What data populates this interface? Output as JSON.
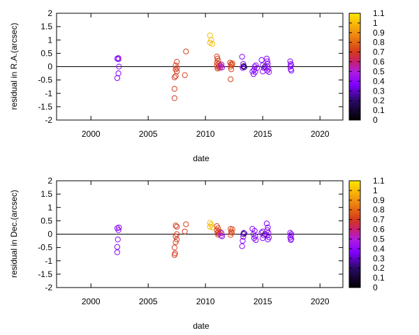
{
  "chart_data": [
    {
      "type": "scatter",
      "xlabel": "date",
      "ylabel": "residual in R.A.(arcsec)",
      "xlim": [
        1997,
        2022
      ],
      "ylim": [
        -2,
        2
      ],
      "xticks": [
        2000,
        2005,
        2010,
        2015,
        2020
      ],
      "yticks": [
        -2,
        -1.5,
        -1,
        -0.5,
        0,
        0.5,
        1,
        1.5,
        2
      ],
      "zero_line": true,
      "colorbar": {
        "min": 0,
        "max": 1.1,
        "ticks": [
          0,
          0.1,
          0.2,
          0.3,
          0.4,
          0.5,
          0.6,
          0.7,
          0.8,
          0.9,
          1,
          1.1
        ]
      },
      "points": [
        {
          "x": 2002.3,
          "y": 0.3,
          "c": 0.38
        },
        {
          "x": 2002.4,
          "y": 0.32,
          "c": 0.38
        },
        {
          "x": 2002.4,
          "y": 0.28,
          "c": 0.38
        },
        {
          "x": 2002.45,
          "y": 0.0,
          "c": 0.38
        },
        {
          "x": 2002.4,
          "y": -0.25,
          "c": 0.38
        },
        {
          "x": 2002.3,
          "y": -0.43,
          "c": 0.38
        },
        {
          "x": 2007.3,
          "y": -1.18,
          "c": 0.7
        },
        {
          "x": 2007.3,
          "y": -0.83,
          "c": 0.7
        },
        {
          "x": 2007.3,
          "y": -0.4,
          "c": 0.7
        },
        {
          "x": 2007.4,
          "y": -0.35,
          "c": 0.7
        },
        {
          "x": 2007.5,
          "y": -0.18,
          "c": 0.7
        },
        {
          "x": 2007.4,
          "y": -0.1,
          "c": 0.7
        },
        {
          "x": 2007.5,
          "y": -0.05,
          "c": 0.7
        },
        {
          "x": 2007.4,
          "y": 0.05,
          "c": 0.7
        },
        {
          "x": 2007.5,
          "y": 0.18,
          "c": 0.7
        },
        {
          "x": 2008.2,
          "y": -0.32,
          "c": 0.72
        },
        {
          "x": 2008.3,
          "y": 0.57,
          "c": 0.72
        },
        {
          "x": 2010.4,
          "y": 1.17,
          "c": 1.0
        },
        {
          "x": 2010.5,
          "y": 1.0,
          "c": 1.0
        },
        {
          "x": 2010.4,
          "y": 0.9,
          "c": 1.0
        },
        {
          "x": 2010.6,
          "y": 0.85,
          "c": 1.0
        },
        {
          "x": 2011.0,
          "y": 0.38,
          "c": 0.72
        },
        {
          "x": 2011.05,
          "y": 0.3,
          "c": 0.72
        },
        {
          "x": 2011.1,
          "y": 0.22,
          "c": 0.72
        },
        {
          "x": 2011.0,
          "y": 0.15,
          "c": 0.72
        },
        {
          "x": 2011.15,
          "y": 0.1,
          "c": 0.72
        },
        {
          "x": 2011.0,
          "y": 0.05,
          "c": 0.72
        },
        {
          "x": 2011.2,
          "y": 0.02,
          "c": 0.7
        },
        {
          "x": 2011.3,
          "y": 0.05,
          "c": 0.7
        },
        {
          "x": 2011.1,
          "y": -0.02,
          "c": 0.7
        },
        {
          "x": 2011.05,
          "y": -0.07,
          "c": 0.7
        },
        {
          "x": 2011.25,
          "y": -0.05,
          "c": 0.7
        },
        {
          "x": 2011.35,
          "y": 0.0,
          "c": 0.5
        },
        {
          "x": 2011.4,
          "y": 0.08,
          "c": 0.45
        },
        {
          "x": 2011.45,
          "y": -0.03,
          "c": 0.4
        },
        {
          "x": 2012.15,
          "y": 0.15,
          "c": 0.72
        },
        {
          "x": 2012.25,
          "y": 0.1,
          "c": 0.72
        },
        {
          "x": 2012.35,
          "y": 0.12,
          "c": 0.72
        },
        {
          "x": 2012.3,
          "y": 0.06,
          "c": 0.72
        },
        {
          "x": 2012.2,
          "y": 0.0,
          "c": 0.72
        },
        {
          "x": 2012.25,
          "y": -0.1,
          "c": 0.72
        },
        {
          "x": 2012.2,
          "y": -0.47,
          "c": 0.72
        },
        {
          "x": 2013.2,
          "y": 0.37,
          "c": 0.38
        },
        {
          "x": 2013.3,
          "y": 0.1,
          "c": 0.38
        },
        {
          "x": 2013.3,
          "y": 0.0,
          "c": 0.3
        },
        {
          "x": 2013.4,
          "y": -0.02,
          "c": 0.2
        },
        {
          "x": 2013.25,
          "y": -0.05,
          "c": 0.38
        },
        {
          "x": 2013.35,
          "y": 0.02,
          "c": 0.1
        },
        {
          "x": 2014.1,
          "y": -0.18,
          "c": 0.38
        },
        {
          "x": 2014.2,
          "y": -0.28,
          "c": 0.38
        },
        {
          "x": 2014.25,
          "y": -0.12,
          "c": 0.38
        },
        {
          "x": 2014.3,
          "y": 0.0,
          "c": 0.38
        },
        {
          "x": 2014.4,
          "y": 0.05,
          "c": 0.38
        },
        {
          "x": 2014.5,
          "y": -0.05,
          "c": 0.38
        },
        {
          "x": 2014.35,
          "y": -0.2,
          "c": 0.38
        },
        {
          "x": 2014.9,
          "y": 0.25,
          "c": 0.38
        },
        {
          "x": 2015.0,
          "y": 0.05,
          "c": 0.38
        },
        {
          "x": 2015.1,
          "y": -0.05,
          "c": 0.38
        },
        {
          "x": 2015.0,
          "y": -0.18,
          "c": 0.38
        },
        {
          "x": 2015.2,
          "y": 0.0,
          "c": 0.15
        },
        {
          "x": 2015.35,
          "y": 0.3,
          "c": 0.38
        },
        {
          "x": 2015.4,
          "y": 0.2,
          "c": 0.38
        },
        {
          "x": 2015.45,
          "y": 0.1,
          "c": 0.38
        },
        {
          "x": 2015.4,
          "y": 0.0,
          "c": 0.38
        },
        {
          "x": 2015.5,
          "y": -0.08,
          "c": 0.38
        },
        {
          "x": 2015.4,
          "y": -0.15,
          "c": 0.38
        },
        {
          "x": 2015.55,
          "y": -0.2,
          "c": 0.38
        },
        {
          "x": 2017.4,
          "y": 0.2,
          "c": 0.38
        },
        {
          "x": 2017.45,
          "y": 0.1,
          "c": 0.38
        },
        {
          "x": 2017.5,
          "y": 0.05,
          "c": 0.38
        },
        {
          "x": 2017.4,
          "y": 0.0,
          "c": 0.38
        },
        {
          "x": 2017.45,
          "y": -0.1,
          "c": 0.38
        },
        {
          "x": 2017.5,
          "y": -0.15,
          "c": 0.38
        }
      ]
    },
    {
      "type": "scatter",
      "xlabel": "date",
      "ylabel": "residual in Dec.(arcsec)",
      "xlim": [
        1997,
        2022
      ],
      "ylim": [
        -2,
        2
      ],
      "xticks": [
        2000,
        2005,
        2010,
        2015,
        2020
      ],
      "yticks": [
        -2,
        -1.5,
        -1,
        -0.5,
        0,
        0.5,
        1,
        1.5,
        2
      ],
      "zero_line": true,
      "colorbar": {
        "min": 0,
        "max": 1.1,
        "ticks": [
          0,
          0.1,
          0.2,
          0.3,
          0.4,
          0.5,
          0.6,
          0.7,
          0.8,
          0.9,
          1,
          1.1
        ]
      },
      "points": [
        {
          "x": 2002.3,
          "y": 0.22,
          "c": 0.38
        },
        {
          "x": 2002.45,
          "y": 0.25,
          "c": 0.38
        },
        {
          "x": 2002.4,
          "y": 0.15,
          "c": 0.38
        },
        {
          "x": 2002.35,
          "y": -0.2,
          "c": 0.38
        },
        {
          "x": 2002.3,
          "y": -0.48,
          "c": 0.38
        },
        {
          "x": 2002.3,
          "y": -0.68,
          "c": 0.38
        },
        {
          "x": 2007.3,
          "y": -0.78,
          "c": 0.7
        },
        {
          "x": 2007.35,
          "y": -0.72,
          "c": 0.7
        },
        {
          "x": 2007.3,
          "y": -0.5,
          "c": 0.7
        },
        {
          "x": 2007.4,
          "y": -0.3,
          "c": 0.7
        },
        {
          "x": 2007.5,
          "y": -0.2,
          "c": 0.7
        },
        {
          "x": 2007.4,
          "y": -0.08,
          "c": 0.7
        },
        {
          "x": 2007.5,
          "y": 0.0,
          "c": 0.7
        },
        {
          "x": 2007.5,
          "y": 0.28,
          "c": 0.7
        },
        {
          "x": 2007.4,
          "y": 0.32,
          "c": 0.7
        },
        {
          "x": 2008.2,
          "y": 0.1,
          "c": 0.72
        },
        {
          "x": 2008.3,
          "y": 0.37,
          "c": 0.72
        },
        {
          "x": 2010.4,
          "y": 0.42,
          "c": 1.0
        },
        {
          "x": 2010.5,
          "y": 0.35,
          "c": 1.0
        },
        {
          "x": 2010.4,
          "y": 0.28,
          "c": 1.0
        },
        {
          "x": 2010.6,
          "y": 0.25,
          "c": 1.0
        },
        {
          "x": 2011.0,
          "y": 0.3,
          "c": 0.72
        },
        {
          "x": 2011.1,
          "y": 0.22,
          "c": 0.72
        },
        {
          "x": 2011.0,
          "y": 0.15,
          "c": 0.72
        },
        {
          "x": 2011.15,
          "y": 0.1,
          "c": 0.72
        },
        {
          "x": 2011.05,
          "y": 0.05,
          "c": 0.7
        },
        {
          "x": 2011.2,
          "y": 0.02,
          "c": 0.7
        },
        {
          "x": 2011.3,
          "y": 0.08,
          "c": 0.7
        },
        {
          "x": 2011.1,
          "y": -0.02,
          "c": 0.7
        },
        {
          "x": 2011.35,
          "y": -0.05,
          "c": 0.5
        },
        {
          "x": 2011.45,
          "y": -0.08,
          "c": 0.4
        },
        {
          "x": 2011.4,
          "y": 0.04,
          "c": 0.45
        },
        {
          "x": 2012.2,
          "y": 0.2,
          "c": 0.72
        },
        {
          "x": 2012.35,
          "y": 0.18,
          "c": 0.72
        },
        {
          "x": 2012.25,
          "y": 0.1,
          "c": 0.72
        },
        {
          "x": 2012.3,
          "y": 0.05,
          "c": 0.72
        },
        {
          "x": 2012.2,
          "y": -0.03,
          "c": 0.72
        },
        {
          "x": 2013.2,
          "y": -0.45,
          "c": 0.38
        },
        {
          "x": 2013.25,
          "y": -0.25,
          "c": 0.38
        },
        {
          "x": 2013.3,
          "y": -0.1,
          "c": 0.38
        },
        {
          "x": 2013.3,
          "y": 0.0,
          "c": 0.25
        },
        {
          "x": 2013.4,
          "y": 0.03,
          "c": 0.15
        },
        {
          "x": 2013.35,
          "y": 0.05,
          "c": 0.38
        },
        {
          "x": 2014.1,
          "y": 0.2,
          "c": 0.38
        },
        {
          "x": 2014.3,
          "y": 0.12,
          "c": 0.38
        },
        {
          "x": 2014.2,
          "y": 0.0,
          "c": 0.38
        },
        {
          "x": 2014.35,
          "y": -0.08,
          "c": 0.38
        },
        {
          "x": 2014.25,
          "y": -0.15,
          "c": 0.38
        },
        {
          "x": 2014.4,
          "y": -0.22,
          "c": 0.38
        },
        {
          "x": 2014.9,
          "y": 0.05,
          "c": 0.38
        },
        {
          "x": 2015.0,
          "y": 0.1,
          "c": 0.38
        },
        {
          "x": 2015.1,
          "y": -0.05,
          "c": 0.38
        },
        {
          "x": 2015.0,
          "y": -0.15,
          "c": 0.38
        },
        {
          "x": 2015.2,
          "y": 0.0,
          "c": 0.15
        },
        {
          "x": 2015.35,
          "y": 0.4,
          "c": 0.38
        },
        {
          "x": 2015.45,
          "y": 0.25,
          "c": 0.38
        },
        {
          "x": 2015.4,
          "y": 0.15,
          "c": 0.38
        },
        {
          "x": 2015.5,
          "y": 0.05,
          "c": 0.38
        },
        {
          "x": 2015.4,
          "y": -0.05,
          "c": 0.38
        },
        {
          "x": 2015.55,
          "y": -0.12,
          "c": 0.38
        },
        {
          "x": 2015.45,
          "y": -0.2,
          "c": 0.38
        },
        {
          "x": 2017.4,
          "y": 0.05,
          "c": 0.38
        },
        {
          "x": 2017.5,
          "y": 0.0,
          "c": 0.38
        },
        {
          "x": 2017.45,
          "y": -0.05,
          "c": 0.38
        },
        {
          "x": 2017.4,
          "y": -0.12,
          "c": 0.38
        },
        {
          "x": 2017.5,
          "y": -0.18,
          "c": 0.38
        },
        {
          "x": 2017.45,
          "y": -0.22,
          "c": 0.38
        }
      ]
    }
  ]
}
